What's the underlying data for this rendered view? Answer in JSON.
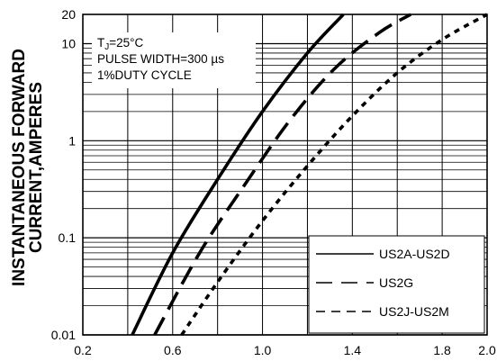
{
  "chart_data": {
    "type": "line",
    "title": "",
    "xlabel": "",
    "ylabel_lines": [
      "INSTANTANEOUS FORWARD",
      "CURRENT,AMPERES"
    ],
    "xlim": [
      0.2,
      2.0
    ],
    "ylim": [
      0.01,
      20
    ],
    "yscale": "log",
    "grid": true,
    "x_ticks": [
      "0.2",
      "0.6",
      "1.0",
      "1.4",
      "1.8",
      "2.0"
    ],
    "x_tick_values": [
      0.2,
      0.6,
      1.0,
      1.4,
      1.8,
      2.0
    ],
    "y_ticks": [
      "0.01",
      "0.1",
      "1",
      "10",
      "20"
    ],
    "y_tick_values": [
      0.01,
      0.1,
      1,
      10,
      20
    ],
    "annotation": {
      "tj_prefix": "T",
      "tj_sub": "J",
      "tj_value": "=25°C",
      "line2": "PULSE WIDTH=300 µs",
      "line3": "1%DUTY CYCLE"
    },
    "legend_position": "bottom-right",
    "series": [
      {
        "name": "US2A-US2D",
        "style": "solid",
        "x": [
          0.42,
          0.6,
          0.8,
          1.0,
          1.2,
          1.36
        ],
        "y": [
          0.01,
          0.07,
          0.4,
          2.0,
          8.0,
          20
        ]
      },
      {
        "name": "US2G",
        "style": "long-dash",
        "x": [
          0.52,
          0.72,
          0.92,
          1.12,
          1.32,
          1.52,
          1.66
        ],
        "y": [
          0.01,
          0.07,
          0.35,
          1.6,
          5.5,
          13,
          20
        ]
      },
      {
        "name": "US2J-US2M",
        "style": "short-dash",
        "x": [
          0.64,
          0.8,
          1.0,
          1.2,
          1.4,
          1.6,
          1.8,
          2.0
        ],
        "y": [
          0.01,
          0.035,
          0.15,
          0.55,
          1.8,
          5.0,
          11,
          20
        ]
      }
    ]
  }
}
